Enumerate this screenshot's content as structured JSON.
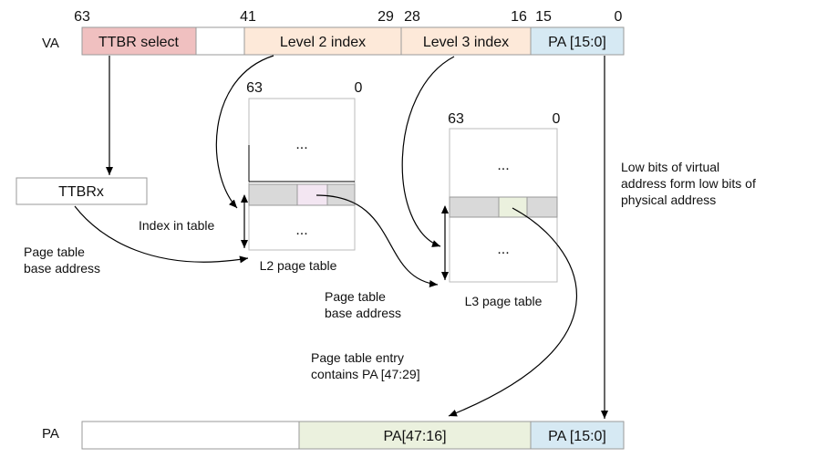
{
  "va": {
    "label": "VA",
    "bit_63": "63",
    "bit_41": "41",
    "bit_29": "29",
    "bit_28": "28",
    "bit_16": "16",
    "bit_15": "15",
    "bit_0": "0",
    "ttbr_select": "TTBR select",
    "level2_index": "Level 2 index",
    "level3_index": "Level 3 index",
    "pa_low": "PA [15:0]"
  },
  "ttbrx": {
    "label": "TTBRx"
  },
  "l2_table": {
    "bit_hi": "63",
    "bit_lo": "0",
    "ellipsis_top": "...",
    "ellipsis_bottom": "...",
    "caption": "L2 page table"
  },
  "l3_table": {
    "bit_hi": "63",
    "bit_lo": "0",
    "ellipsis_top": "...",
    "ellipsis_bottom": "...",
    "caption": "L3 page table"
  },
  "annotations": {
    "index_in_table": "Index in table",
    "ptba1_line1": "Page table",
    "ptba1_line2": "base address",
    "ptba2_line1": "Page table",
    "ptba2_line2": "base address",
    "pte_line1": "Page table entry",
    "pte_line2": "contains PA [47:29]",
    "low_bits_line1": "Low bits of virtual",
    "low_bits_line2": "address form low bits of",
    "low_bits_line3": "physical address"
  },
  "pa": {
    "label": "PA",
    "pa_high": "PA[47:16]",
    "pa_low": "PA [15:0]"
  },
  "colors": {
    "ttbr_select": "#f0c0c0",
    "level_index": "#fde9d9",
    "pa_low": "#d6e9f3",
    "pa_high": "#ebf1de",
    "entry_grey": "#d9d9d9",
    "entry_l2_highlight": "#f3e6f2",
    "entry_l3_highlight": "#ebf1de"
  }
}
